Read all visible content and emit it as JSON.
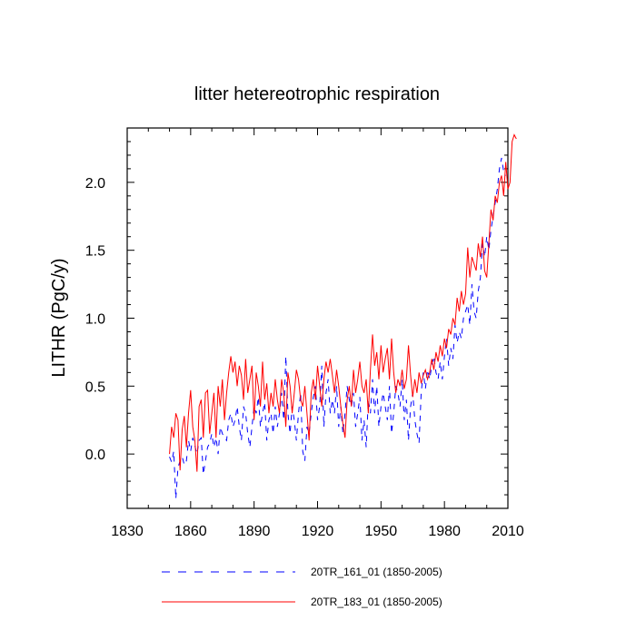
{
  "chart_data": {
    "type": "line",
    "title": "litter hetereotrophic respiration",
    "xlabel": "",
    "ylabel": "LITHR  (PgC/y)",
    "xlim": [
      1830,
      2010
    ],
    "ylim": [
      -0.4,
      2.4
    ],
    "xticks": [
      1830,
      1860,
      1890,
      1920,
      1950,
      1980,
      2010
    ],
    "yticks": [
      0.0,
      0.5,
      1.0,
      1.5,
      2.0
    ],
    "ytick_labels": [
      "0.0",
      "0.5",
      "1.0",
      "1.5",
      "2.0"
    ],
    "grid": false,
    "legend_position": "bottom",
    "series": [
      {
        "name": "20TR_161_01 (1850-2005)",
        "color": "#0000ff",
        "style": "dashed",
        "x_start": 1850,
        "x_step": 1,
        "values": [
          -0.02,
          -0.06,
          0.02,
          -0.33,
          -0.1,
          -0.05,
          -0.02,
          -0.08,
          -0.05,
          0.1,
          0.02,
          0.12,
          0.06,
          0.0,
          0.1,
          0.12,
          -0.15,
          -0.05,
          0.05,
          0.08,
          0.15,
          0.05,
          0.12,
          0.0,
          0.2,
          0.15,
          0.12,
          0.1,
          0.25,
          0.3,
          0.2,
          0.25,
          0.35,
          0.2,
          0.1,
          0.35,
          0.3,
          0.15,
          0.05,
          0.2,
          0.35,
          0.3,
          0.42,
          0.2,
          0.3,
          0.38,
          0.1,
          0.25,
          0.3,
          0.15,
          0.35,
          0.2,
          0.3,
          0.45,
          0.25,
          0.72,
          0.3,
          0.15,
          0.35,
          0.25,
          0.1,
          0.3,
          0.45,
          0.02,
          -0.05,
          0.2,
          0.15,
          0.3,
          0.42,
          0.5,
          0.25,
          0.35,
          0.65,
          0.2,
          0.45,
          0.55,
          0.3,
          0.4,
          0.3,
          0.5,
          0.2,
          0.35,
          0.15,
          0.3,
          0.5,
          0.4,
          0.35,
          0.45,
          0.2,
          0.3,
          0.42,
          0.1,
          0.25,
          0.05,
          0.4,
          0.3,
          0.55,
          0.3,
          0.5,
          0.2,
          0.35,
          0.45,
          0.35,
          0.25,
          0.5,
          0.15,
          0.3,
          0.5,
          0.45,
          0.35,
          0.55,
          0.25,
          0.4,
          0.1,
          0.35,
          0.45,
          0.25,
          0.15,
          0.08,
          0.45,
          0.6,
          0.48,
          0.62,
          0.55,
          0.65,
          0.72,
          0.6,
          0.55,
          0.68,
          0.55,
          0.72,
          0.85,
          0.65,
          0.78,
          0.7,
          0.95,
          0.82,
          0.9,
          0.85,
          1.0,
          1.05,
          1.1,
          0.95,
          1.25,
          1.05,
          1.0,
          1.2,
          1.3,
          1.55,
          1.45,
          1.6,
          1.5,
          1.65,
          1.75,
          1.85,
          1.95,
          2.1,
          2.18,
          2.08,
          2.05
        ]
      },
      {
        "name": "20TR_183_01 (1850-2005)",
        "color": "#ff0000",
        "style": "solid",
        "x_start": 1850,
        "x_step": 1,
        "values": [
          0.0,
          0.2,
          0.12,
          0.3,
          0.25,
          -0.12,
          0.18,
          0.28,
          0.05,
          0.3,
          0.47,
          0.2,
          0.1,
          -0.13,
          0.35,
          0.4,
          0.12,
          0.45,
          0.47,
          0.15,
          0.3,
          0.45,
          0.12,
          0.5,
          0.35,
          0.55,
          0.25,
          0.45,
          0.6,
          0.72,
          0.6,
          0.68,
          0.5,
          0.65,
          0.58,
          0.4,
          0.7,
          0.45,
          0.55,
          0.65,
          0.25,
          0.6,
          0.5,
          0.35,
          0.68,
          0.4,
          0.52,
          0.3,
          0.45,
          0.35,
          0.55,
          0.4,
          0.3,
          0.55,
          0.45,
          0.2,
          0.6,
          0.5,
          0.3,
          0.45,
          0.62,
          0.55,
          0.4,
          0.35,
          0.5,
          0.3,
          0.1,
          0.45,
          0.55,
          0.4,
          0.65,
          0.5,
          0.35,
          0.55,
          0.68,
          0.6,
          0.7,
          0.58,
          0.45,
          0.62,
          0.5,
          0.35,
          0.22,
          0.12,
          0.4,
          0.5,
          0.35,
          0.62,
          0.45,
          0.55,
          0.68,
          0.5,
          0.45,
          0.55,
          0.3,
          0.62,
          0.88,
          0.65,
          0.75,
          0.55,
          0.8,
          0.6,
          0.7,
          0.78,
          0.55,
          0.85,
          0.6,
          0.45,
          0.55,
          0.5,
          0.62,
          0.48,
          0.55,
          0.8,
          0.58,
          0.42,
          0.55,
          0.45,
          0.6,
          0.52,
          0.58,
          0.62,
          0.55,
          0.6,
          0.7,
          0.62,
          0.75,
          0.68,
          0.8,
          0.72,
          0.85,
          0.78,
          0.92,
          0.88,
          1.0,
          0.95,
          1.15,
          1.05,
          1.2,
          1.1,
          1.18,
          1.52,
          1.3,
          1.45,
          1.4,
          1.35,
          1.55,
          1.45,
          1.6,
          1.35,
          1.3,
          1.55,
          1.8,
          1.72,
          1.9,
          1.85,
          2.0,
          2.05,
          1.9,
          2.15,
          1.95,
          2.0,
          2.3,
          2.35,
          2.32
        ]
      }
    ]
  }
}
